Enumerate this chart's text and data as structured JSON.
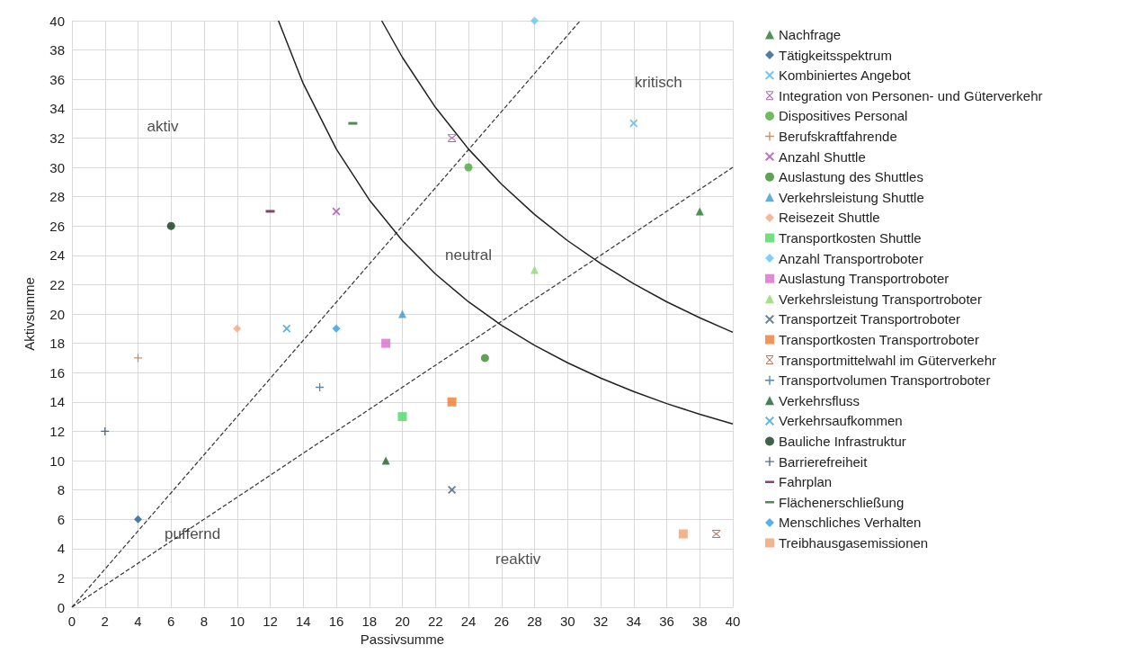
{
  "chart_data": {
    "type": "scatter",
    "xlabel": "Passivsumme",
    "ylabel": "Aktivsumme",
    "xlim": [
      0,
      40
    ],
    "ylim": [
      0,
      40
    ],
    "xticks": [
      0,
      2,
      4,
      6,
      8,
      10,
      12,
      14,
      16,
      18,
      20,
      22,
      24,
      26,
      28,
      30,
      32,
      34,
      36,
      38,
      40
    ],
    "yticks": [
      0,
      2,
      4,
      6,
      8,
      10,
      12,
      14,
      16,
      18,
      20,
      22,
      24,
      26,
      28,
      30,
      32,
      34,
      36,
      38,
      40
    ],
    "grid": true,
    "legend": "right",
    "series": [
      {
        "name": "Nachfrage",
        "color": "#1e7a2e",
        "marker": "triangle",
        "x": [
          38
        ],
        "values": [
          27
        ]
      },
      {
        "name": "Tätigkeitsspektrum",
        "color": "#1f5f8b",
        "marker": "diamond",
        "x": [
          4
        ],
        "values": [
          6
        ]
      },
      {
        "name": "Kombiniertes Angebot",
        "color": "#4ab8e8",
        "marker": "x",
        "x": [
          34
        ],
        "values": [
          33
        ]
      },
      {
        "name": "Integration von Personen- und Güterverkehr",
        "color": "#9b3b9b",
        "marker": "star",
        "x": [
          23
        ],
        "values": [
          32
        ]
      },
      {
        "name": "Dispositives Personal",
        "color": "#4aaa3a",
        "marker": "circle",
        "x": [
          24
        ],
        "values": [
          30
        ]
      },
      {
        "name": "Berufskraftfahrende",
        "color": "#c8733a",
        "marker": "plus",
        "x": [
          4
        ],
        "values": [
          17
        ]
      },
      {
        "name": "Anzahl Shuttle",
        "color": "#b04ab0",
        "marker": "x",
        "x": [
          16
        ],
        "values": [
          27
        ]
      },
      {
        "name": "Auslastung des Shuttles",
        "color": "#3a8a2a",
        "marker": "circle",
        "x": [
          25
        ],
        "values": [
          17
        ]
      },
      {
        "name": "Verkehrsleistung Shuttle",
        "color": "#3a9ad0",
        "marker": "triangle",
        "x": [
          20
        ],
        "values": [
          20
        ]
      },
      {
        "name": "Reisezeit Shuttle",
        "color": "#f4a582",
        "marker": "diamond",
        "x": [
          10
        ],
        "values": [
          19
        ]
      },
      {
        "name": "Transportkosten Shuttle",
        "color": "#4cd964",
        "marker": "square",
        "x": [
          20
        ],
        "values": [
          13
        ]
      },
      {
        "name": "Anzahl Transportroboter",
        "color": "#5bc8f5",
        "marker": "diamond",
        "x": [
          28
        ],
        "values": [
          40
        ]
      },
      {
        "name": "Auslastung Transportroboter",
        "color": "#d96bd0",
        "marker": "square",
        "x": [
          19
        ],
        "values": [
          18
        ]
      },
      {
        "name": "Verkehrsleistung Transportroboter",
        "color": "#8ed86e",
        "marker": "triangle",
        "x": [
          28
        ],
        "values": [
          23
        ]
      },
      {
        "name": "Transportzeit Transportroboter",
        "color": "#3a5f80",
        "marker": "x",
        "x": [
          23
        ],
        "values": [
          8
        ]
      },
      {
        "name": "Transportkosten Transportroboter",
        "color": "#ef7a30",
        "marker": "square",
        "x": [
          23
        ],
        "values": [
          14
        ]
      },
      {
        "name": "Transportmittelwahl im Güterverkehr",
        "color": "#a0522d",
        "marker": "star",
        "x": [
          39
        ],
        "values": [
          5
        ]
      },
      {
        "name": "Transportvolumen Transportroboter",
        "color": "#2e6a9a",
        "marker": "plus",
        "x": [
          15
        ],
        "values": [
          15
        ]
      },
      {
        "name": "Verkehrsfluss",
        "color": "#1e5e2a",
        "marker": "triangle",
        "x": [
          19
        ],
        "values": [
          10
        ]
      },
      {
        "name": "Verkehrsaufkommen",
        "color": "#3aa0d0",
        "marker": "x",
        "x": [
          13
        ],
        "values": [
          19
        ]
      },
      {
        "name": "Bauliche Infrastruktur",
        "color": "#0e3a1a",
        "marker": "circle",
        "x": [
          6
        ],
        "values": [
          26
        ]
      },
      {
        "name": "Barrierefreiheit",
        "color": "#2a4a6a",
        "marker": "plus",
        "x": [
          2
        ],
        "values": [
          12
        ]
      },
      {
        "name": "Fahrplan",
        "color": "#5a1a4a",
        "x": [
          12
        ],
        "values": [
          27
        ]
      },
      {
        "name": "Flächenerschließung",
        "color": "#2a6a2a",
        "x": [
          17
        ],
        "values": [
          33
        ]
      },
      {
        "name": "Menschliches Verhalten",
        "color": "#2aa0e0",
        "marker": "diamond",
        "x": [
          16
        ],
        "values": [
          19
        ]
      },
      {
        "name": "Treibhausgasemissionen",
        "color": "#f0a070",
        "marker": "square",
        "x": [
          37
        ],
        "values": [
          5
        ]
      },
      {
        "type": "line",
        "color": "#333333",
        "line_style": "dashed",
        "x": [
          0,
          30.77
        ],
        "values": [
          0,
          40
        ]
      },
      {
        "type": "line",
        "color": "#333333",
        "line_style": "dashed",
        "x": [
          0,
          40
        ],
        "values": [
          0,
          30
        ]
      },
      {
        "type": "line",
        "color": "#222222",
        "line_style": "solid",
        "x": [
          12.5,
          14,
          16,
          18,
          20,
          22,
          24,
          26,
          28,
          30,
          32,
          34,
          36,
          38,
          40
        ],
        "values": [
          40,
          35.71,
          31.25,
          27.78,
          25,
          22.73,
          20.83,
          19.23,
          17.86,
          16.67,
          15.63,
          14.71,
          13.89,
          13.16,
          12.5
        ]
      },
      {
        "type": "line",
        "color": "#222222",
        "line_style": "solid",
        "x": [
          18.75,
          20,
          22,
          24,
          26,
          28,
          30,
          32,
          34,
          36,
          38,
          40
        ],
        "values": [
          40,
          37.5,
          34.09,
          31.25,
          28.85,
          26.79,
          25,
          23.44,
          22.06,
          20.83,
          19.74,
          18.75
        ]
      }
    ],
    "annotations": [
      "aktiv",
      "kritisch",
      "neutral",
      "puffernd",
      "reaktiv"
    ]
  }
}
